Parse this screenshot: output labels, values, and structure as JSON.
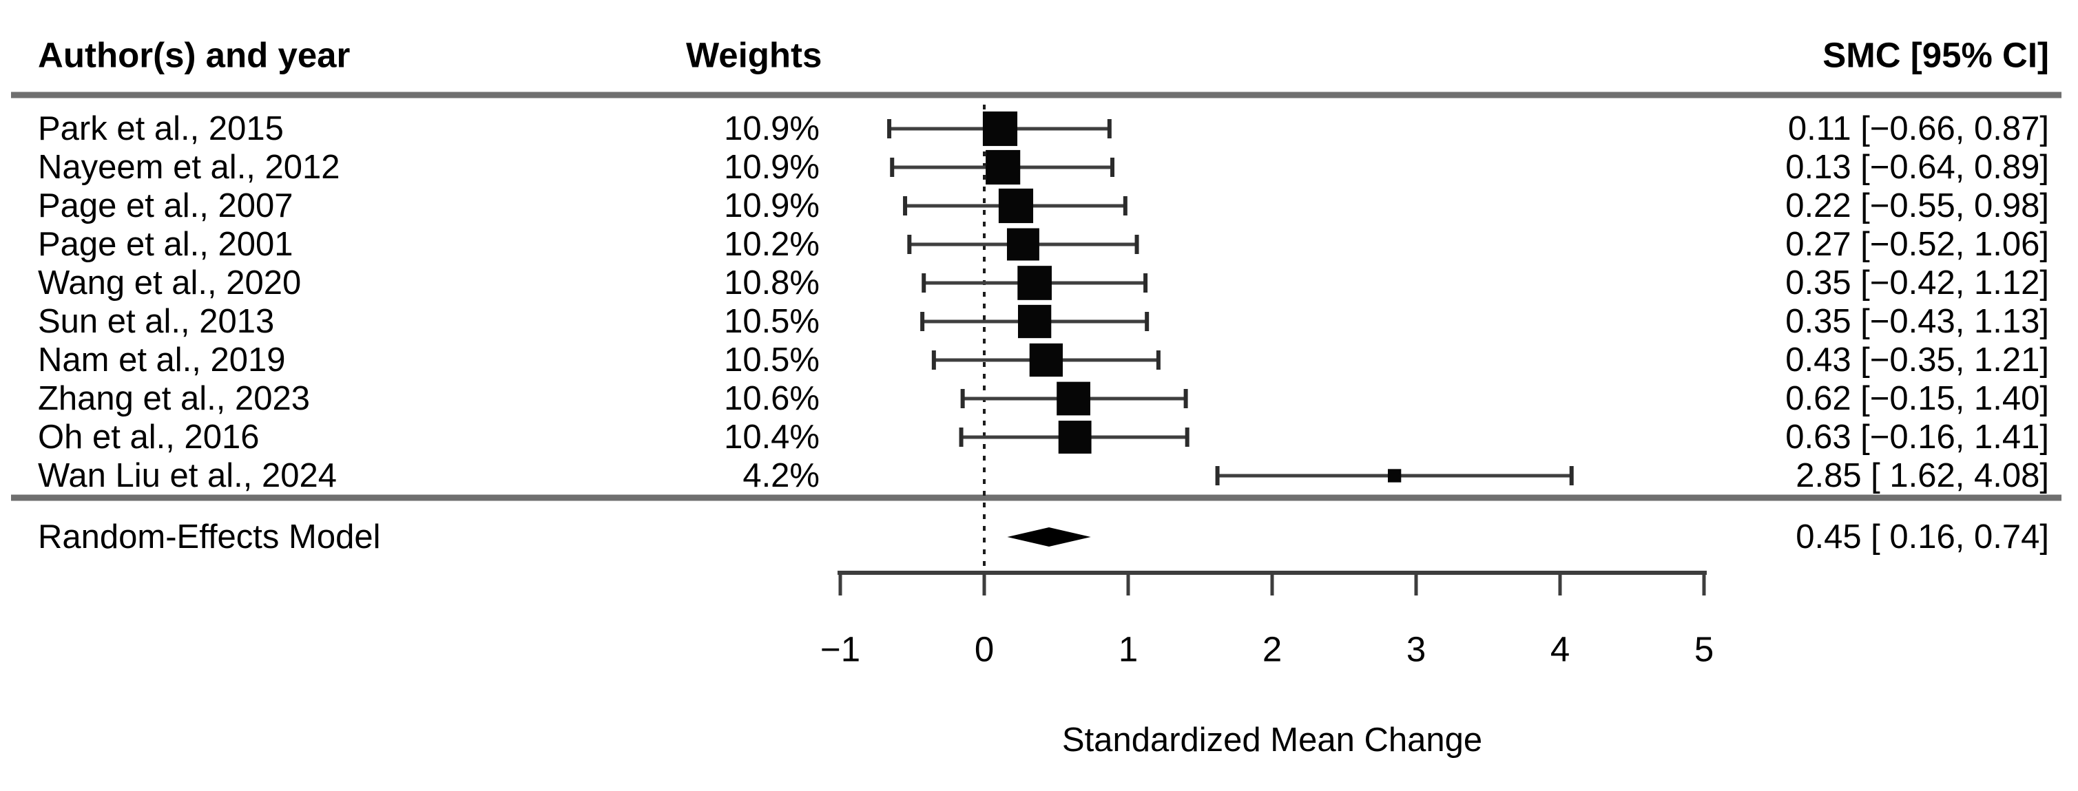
{
  "chart_data": {
    "type": "forest",
    "columns": {
      "authors": "Author(s) and year",
      "weights": "Weights",
      "smc": "SMC [95% CI]"
    },
    "xlabel": "Standardized Mean Change",
    "xlim": [
      -1,
      5
    ],
    "zero_line": 0,
    "grid": false,
    "x_ticks": [
      {
        "v": -1,
        "label": "−1"
      },
      {
        "v": 0,
        "label": "0"
      },
      {
        "v": 1,
        "label": "1"
      },
      {
        "v": 2,
        "label": "2"
      },
      {
        "v": 3,
        "label": "3"
      },
      {
        "v": 4,
        "label": "4"
      },
      {
        "v": 5,
        "label": "5"
      }
    ],
    "studies": [
      {
        "label": "Park et al., 2015",
        "weight": "10.9%",
        "weight_value": 10.9,
        "estimate": 0.11,
        "ci_lower": -0.66,
        "ci_upper": 0.87,
        "annotation": "0.11 [−0.66, 0.87]"
      },
      {
        "label": "Nayeem et al., 2012",
        "weight": "10.9%",
        "weight_value": 10.9,
        "estimate": 0.13,
        "ci_lower": -0.64,
        "ci_upper": 0.89,
        "annotation": "0.13 [−0.64, 0.89]"
      },
      {
        "label": "Page et al., 2007",
        "weight": "10.9%",
        "weight_value": 10.9,
        "estimate": 0.22,
        "ci_lower": -0.55,
        "ci_upper": 0.98,
        "annotation": "0.22 [−0.55, 0.98]"
      },
      {
        "label": "Page et al., 2001",
        "weight": "10.2%",
        "weight_value": 10.2,
        "estimate": 0.27,
        "ci_lower": -0.52,
        "ci_upper": 1.06,
        "annotation": "0.27 [−0.52, 1.06]"
      },
      {
        "label": "Wang et al., 2020",
        "weight": "10.8%",
        "weight_value": 10.8,
        "estimate": 0.35,
        "ci_lower": -0.42,
        "ci_upper": 1.12,
        "annotation": "0.35 [−0.42, 1.12]"
      },
      {
        "label": "Sun et al., 2013",
        "weight": "10.5%",
        "weight_value": 10.5,
        "estimate": 0.35,
        "ci_lower": -0.43,
        "ci_upper": 1.13,
        "annotation": "0.35 [−0.43, 1.13]"
      },
      {
        "label": "Nam et al., 2019",
        "weight": "10.5%",
        "weight_value": 10.5,
        "estimate": 0.43,
        "ci_lower": -0.35,
        "ci_upper": 1.21,
        "annotation": "0.43 [−0.35, 1.21]"
      },
      {
        "label": "Zhang et al., 2023",
        "weight": "10.6%",
        "weight_value": 10.6,
        "estimate": 0.62,
        "ci_lower": -0.15,
        "ci_upper": 1.4,
        "annotation": "0.62 [−0.15, 1.40]"
      },
      {
        "label": "Oh et al., 2016",
        "weight": "10.4%",
        "weight_value": 10.4,
        "estimate": 0.63,
        "ci_lower": -0.16,
        "ci_upper": 1.41,
        "annotation": "0.63 [−0.16, 1.41]"
      },
      {
        "label": "Wan Liu et al., 2024",
        "weight": "4.2%",
        "weight_value": 4.2,
        "estimate": 2.85,
        "ci_lower": 1.62,
        "ci_upper": 4.08,
        "annotation": "2.85 [ 1.62, 4.08]"
      }
    ],
    "summary": {
      "label": "Random-Effects Model",
      "estimate": 0.45,
      "ci_lower": 0.16,
      "ci_upper": 0.74,
      "annotation": "0.45 [ 0.16, 0.74]"
    },
    "colors": {
      "text": "#000000",
      "separator": "#6f6f6f",
      "axis": "#3d3d3d",
      "ci_line": "#3f3f3f",
      "ci_cap": "#2b2b2b",
      "square": "#060606",
      "diamond": "#000000",
      "zero_line": "#1c1c1c"
    }
  }
}
